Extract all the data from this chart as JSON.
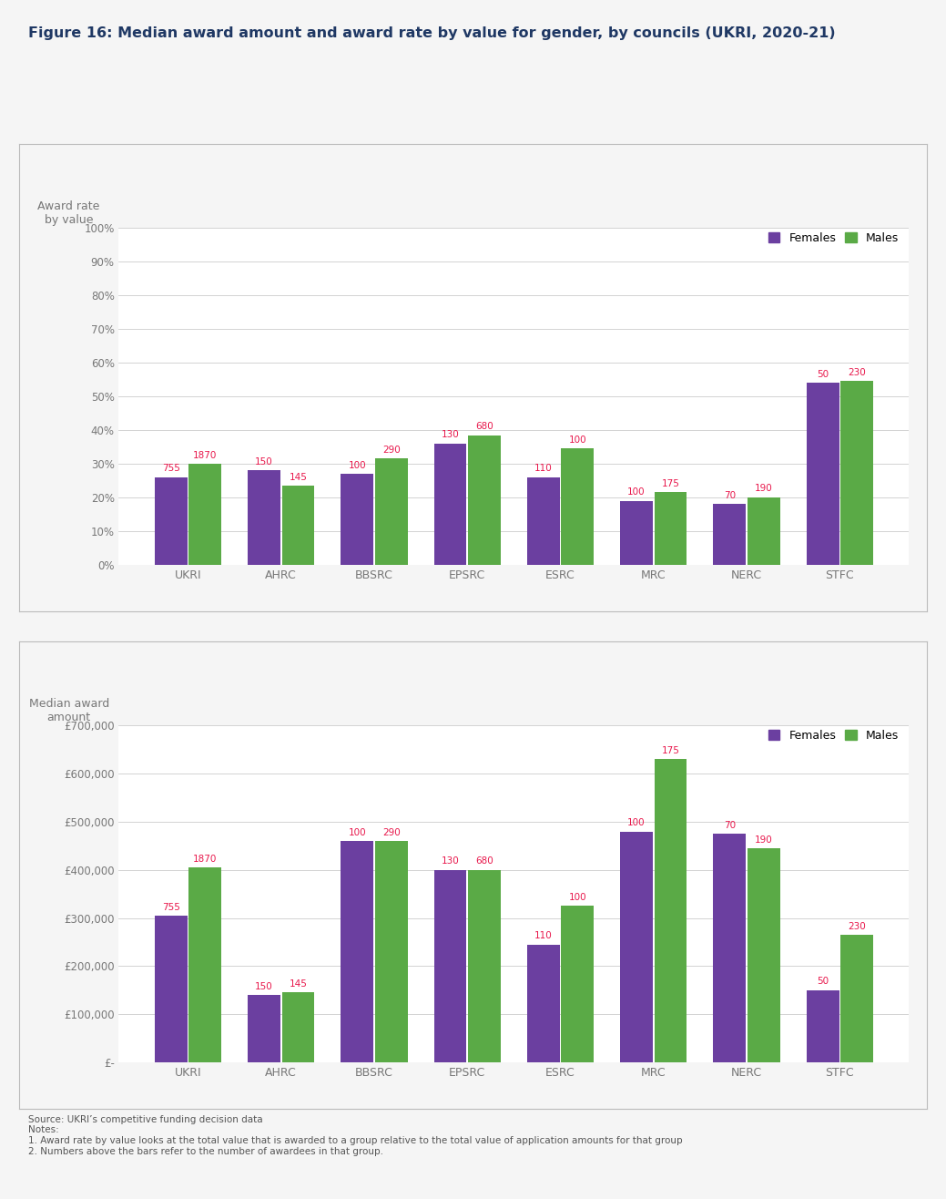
{
  "title": "Figure 16: Median award amount and award rate by value for gender, by councils (UKRI, 2020-21)",
  "title_color": "#1f3864",
  "categories": [
    "UKRI",
    "AHRC",
    "BBSRC",
    "EPSRC",
    "ESRC",
    "MRC",
    "NERC",
    "STFC"
  ],
  "top_chart": {
    "ylabel": "Award rate\nby value",
    "ylim": [
      0,
      1.0
    ],
    "yticks": [
      0,
      0.1,
      0.2,
      0.3,
      0.4,
      0.5,
      0.6,
      0.7,
      0.8,
      0.9,
      1.0
    ],
    "ytick_labels": [
      "0%",
      "10%",
      "20%",
      "30%",
      "40%",
      "50%",
      "60%",
      "70%",
      "80%",
      "90%",
      "100%"
    ],
    "females": [
      0.26,
      0.28,
      0.27,
      0.36,
      0.26,
      0.19,
      0.18,
      0.54
    ],
    "males": [
      0.3,
      0.235,
      0.315,
      0.385,
      0.345,
      0.215,
      0.2,
      0.545
    ]
  },
  "bottom_chart": {
    "ylabel": "Median award\namount",
    "ylim": [
      0,
      700000
    ],
    "yticks": [
      0,
      100000,
      200000,
      300000,
      400000,
      500000,
      600000,
      700000
    ],
    "ytick_labels": [
      "£-",
      "£100,000",
      "£200,000",
      "£300,000",
      "£400,000",
      "£500,000",
      "£600,000",
      "£700,000"
    ],
    "females": [
      305000,
      140000,
      460000,
      400000,
      245000,
      480000,
      475000,
      150000
    ],
    "males": [
      405000,
      145000,
      460000,
      400000,
      325000,
      630000,
      445000,
      265000
    ]
  },
  "annotations": {
    "females_counts": [
      755,
      150,
      100,
      130,
      110,
      100,
      70,
      50
    ],
    "males_counts": [
      1870,
      145,
      290,
      680,
      100,
      175,
      190,
      230
    ]
  },
  "female_color": "#6b3fa0",
  "male_color": "#5aaa46",
  "annotation_color": "#e8174b",
  "legend_female": "Females",
  "legend_male": "Males",
  "bg_color": "#f5f5f5",
  "panel_bg": "#ffffff",
  "grid_color": "#cccccc",
  "axis_color": "#bbbbbb",
  "label_color": "#777777",
  "footnote_lines": [
    "Source: UKRI’s competitive funding decision data",
    "Notes:",
    "1. Award rate by value looks at the total value that is awarded to a group relative to the total value of application amounts for that group",
    "2. Numbers above the bars refer to the number of awardees in that group."
  ]
}
